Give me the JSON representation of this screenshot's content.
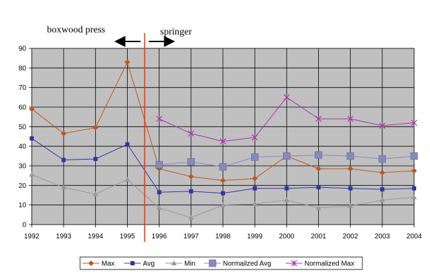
{
  "chart_data": {
    "type": "line",
    "x": [
      1992,
      1993,
      1994,
      1995,
      1996,
      1997,
      1998,
      1999,
      2000,
      2001,
      2002,
      2003,
      2004
    ],
    "ylim": [
      0,
      90
    ],
    "yticks": [
      0,
      10,
      20,
      30,
      40,
      50,
      60,
      70,
      80,
      90
    ],
    "grid": true,
    "legend_position": "bottom",
    "annotations": {
      "left_text": "boxwood press",
      "right_text": "springer",
      "divider_between": [
        1995,
        1996
      ]
    },
    "series": [
      {
        "name": "Max",
        "color": "#c0561a",
        "marker": "diamond",
        "values": [
          59,
          46.5,
          49.5,
          83,
          28.5,
          24.5,
          22.5,
          23.5,
          35,
          28.5,
          28.5,
          26.5,
          27.5
        ]
      },
      {
        "name": "Avg",
        "color": "#3333aa",
        "marker": "square",
        "values": [
          44,
          33,
          33.5,
          41,
          16.5,
          17,
          16,
          18.5,
          18.5,
          19,
          18.5,
          18,
          18.5
        ]
      },
      {
        "name": "Min",
        "color": "#999999",
        "marker": "triangle",
        "values": [
          25.5,
          19,
          15.5,
          23,
          8.5,
          3.5,
          10,
          10.5,
          12.5,
          8.5,
          9.5,
          12.5,
          14
        ]
      },
      {
        "name": "Normailzed Avg",
        "color": "#8888bb",
        "marker": "bigsquare",
        "values": [
          null,
          null,
          null,
          null,
          30.5,
          32,
          29.5,
          34.5,
          35,
          35.5,
          35,
          33.5,
          35
        ]
      },
      {
        "name": "Normalized Max",
        "color": "#aa33aa",
        "marker": "star",
        "values": [
          null,
          null,
          null,
          null,
          54,
          46.5,
          42.5,
          44.5,
          65,
          54,
          54,
          50.5,
          52
        ]
      }
    ]
  }
}
